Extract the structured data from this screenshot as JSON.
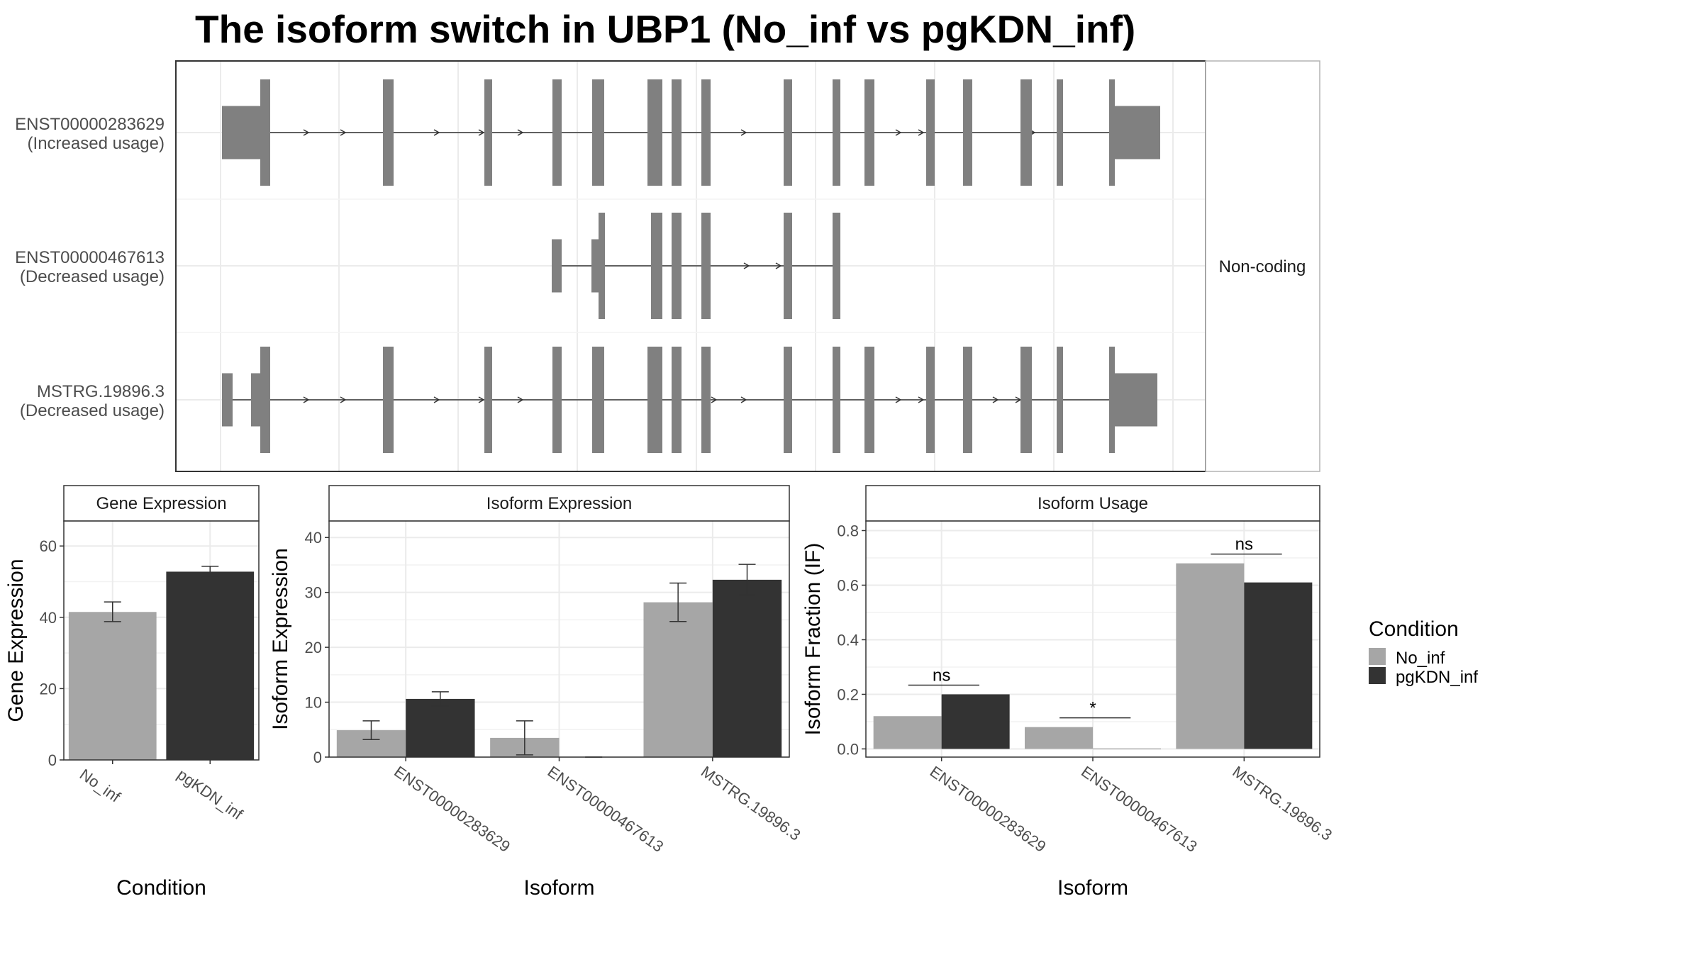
{
  "title": "The isoform switch in UBP1 (No_inf vs pgKDN_inf)",
  "colors": {
    "No_inf": "#a6a6a6",
    "pgKDN_inf": "#333333",
    "exon": "#808080"
  },
  "legend": {
    "title": "Condition",
    "items": [
      {
        "label": "No_inf",
        "color": "#a6a6a6"
      },
      {
        "label": "pgKDN_inf",
        "color": "#333333"
      }
    ]
  },
  "chart_data": [
    {
      "type": "gene-structure",
      "panel_label": "Non-coding",
      "isoforms": [
        {
          "id": "ENST00000283629",
          "usage": "(Increased usage)"
        },
        {
          "id": "ENST00000467613",
          "usage": "(Decreased usage)"
        },
        {
          "id": "MSTRG.19896.3",
          "usage": "(Decreased usage)"
        }
      ]
    },
    {
      "type": "bar",
      "strip": "Gene Expression",
      "xlabel": "Condition",
      "ylabel": "Gene Expression",
      "ylim": [
        0,
        67
      ],
      "yticks": [
        0,
        20,
        40,
        60
      ],
      "categories": [
        "No_inf",
        "pgKDN_inf"
      ],
      "values": [
        41.5,
        52.8
      ],
      "errors": [
        [
          38.8,
          44.3
        ],
        [
          51.2,
          54.3
        ]
      ]
    },
    {
      "type": "bar",
      "strip": "Isoform Expression",
      "xlabel": "Isoform",
      "ylabel": "Isoform Expression",
      "ylim": [
        0,
        43
      ],
      "yticks": [
        0,
        10,
        20,
        30,
        40
      ],
      "categories": [
        "ENST00000283629",
        "ENST00000467613",
        "MSTRG.19896.3"
      ],
      "series": [
        {
          "name": "No_inf",
          "values": [
            4.9,
            3.5,
            28.2
          ],
          "errors": [
            [
              3.2,
              6.6
            ],
            [
              0.4,
              6.6
            ],
            [
              24.7,
              31.7
            ]
          ]
        },
        {
          "name": "pgKDN_inf",
          "values": [
            10.6,
            0,
            32.3
          ],
          "errors": [
            [
              9.3,
              11.9
            ],
            [
              0,
              0
            ],
            [
              29.5,
              35.1
            ]
          ]
        }
      ]
    },
    {
      "type": "bar",
      "strip": "Isoform Usage",
      "xlabel": "Isoform",
      "ylabel": "Isoform Fraction (IF)",
      "ylim": [
        -0.03,
        0.835
      ],
      "yticks": [
        "0.0",
        "0.2",
        "0.4",
        "0.6",
        "0.8"
      ],
      "categories": [
        "ENST00000283629",
        "ENST00000467613",
        "MSTRG.19896.3"
      ],
      "series": [
        {
          "name": "No_inf",
          "values": [
            0.12,
            0.08,
            0.68
          ]
        },
        {
          "name": "pgKDN_inf",
          "values": [
            0.2,
            0,
            0.61
          ]
        }
      ],
      "significance": [
        "ns",
        "*",
        "ns"
      ]
    }
  ]
}
